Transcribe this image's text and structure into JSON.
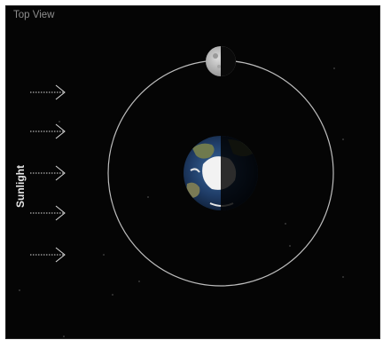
{
  "title": "Top View",
  "sun_label": "Sunlight",
  "colors": {
    "background": "#050505",
    "orbit": "#bdbdbd",
    "arrow": "#d9d9d9",
    "ocean": "#1f3c66",
    "cloud": "#f2f2f2",
    "shadow": "#000000"
  },
  "sunlight_arrows": 5
}
